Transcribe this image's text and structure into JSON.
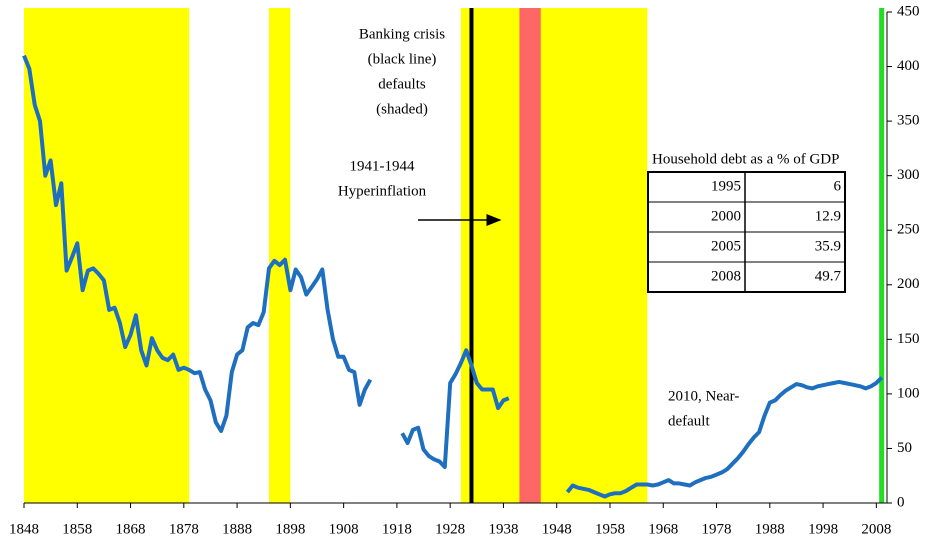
{
  "chart_data": {
    "type": "line",
    "banking_crisis_label": [
      "Banking crisis",
      "(black line)",
      "defaults",
      "(shaded)"
    ],
    "hyperinflation_label": [
      "1941-1944",
      "Hyperinflation"
    ],
    "near_default_label": [
      "2010, Near-",
      "default"
    ],
    "x": [
      1848,
      1849,
      1850,
      1851,
      1852,
      1853,
      1854,
      1855,
      1856,
      1857,
      1858,
      1859,
      1860,
      1861,
      1862,
      1863,
      1864,
      1865,
      1866,
      1867,
      1868,
      1869,
      1870,
      1871,
      1872,
      1873,
      1874,
      1875,
      1876,
      1877,
      1878,
      1879,
      1880,
      1881,
      1882,
      1883,
      1884,
      1885,
      1886,
      1887,
      1888,
      1889,
      1890,
      1891,
      1892,
      1893,
      1894,
      1895,
      1896,
      1897,
      1898,
      1899,
      1900,
      1901,
      1902,
      1903,
      1904,
      1905,
      1906,
      1907,
      1908,
      1909,
      1910,
      1911,
      1912,
      1913,
      1916,
      1919,
      1920,
      1921,
      1922,
      1923,
      1924,
      1925,
      1926,
      1927,
      1928,
      1929,
      1930,
      1931,
      1932,
      1933,
      1934,
      1935,
      1936,
      1937,
      1938,
      1939,
      1945,
      1950,
      1951,
      1952,
      1953,
      1954,
      1955,
      1956,
      1957,
      1958,
      1959,
      1960,
      1961,
      1962,
      1963,
      1964,
      1965,
      1966,
      1967,
      1968,
      1969,
      1970,
      1971,
      1972,
      1973,
      1974,
      1975,
      1976,
      1977,
      1978,
      1979,
      1980,
      1981,
      1982,
      1983,
      1984,
      1985,
      1986,
      1987,
      1988,
      1989,
      1990,
      1991,
      1992,
      1993,
      1994,
      1995,
      1996,
      1997,
      1998,
      1999,
      2000,
      2001,
      2002,
      2003,
      2004,
      2005,
      2006,
      2007,
      2008,
      2009
    ],
    "series": [
      {
        "color": "#1f6fc0",
        "values": [
          410,
          398,
          365,
          350,
          300,
          314,
          273,
          293,
          213,
          225,
          238,
          195,
          213,
          215,
          210,
          204,
          177,
          179,
          165,
          143,
          154,
          172,
          140,
          126,
          151,
          140,
          133,
          131,
          136,
          122,
          124,
          122,
          119,
          120,
          104,
          94,
          74,
          66,
          80,
          120,
          136,
          140,
          161,
          165,
          163,
          175,
          215,
          222,
          218,
          223,
          195,
          214,
          207,
          191,
          198,
          205,
          214,
          177,
          150,
          134,
          134,
          122,
          120,
          90,
          104,
          113,
          null,
          64,
          55,
          67,
          69,
          49,
          43,
          40,
          38,
          33,
          110,
          118,
          128,
          140,
          126,
          110,
          104,
          104,
          104,
          87,
          94,
          96,
          null,
          10,
          16,
          14,
          13,
          12,
          10,
          8,
          6,
          8,
          9,
          9,
          11,
          14,
          17,
          17,
          17,
          16,
          17,
          19,
          21,
          18,
          18,
          17,
          16,
          19,
          21,
          23,
          24,
          26,
          28,
          31,
          36,
          41,
          47,
          54,
          60,
          65,
          80,
          92,
          94,
          99,
          103,
          106,
          109,
          108,
          106,
          105,
          107,
          108,
          109,
          110,
          111,
          110,
          109,
          108,
          107,
          105,
          107,
          110,
          115
        ]
      }
    ],
    "default_periods": [
      [
        1848,
        1879
      ],
      [
        1894,
        1898
      ],
      [
        1930,
        1965
      ]
    ],
    "default_color": "#ffff00",
    "hyperinflation_period": [
      1941,
      1945
    ],
    "hyperinflation_color": "#ff6666",
    "banking_crisis_year": 1932,
    "end_marker_year": 2009,
    "end_marker_color": "#22dd22",
    "xlim": [
      1848,
      2010
    ],
    "xticks": [
      1848,
      1858,
      1868,
      1878,
      1888,
      1898,
      1908,
      1918,
      1928,
      1938,
      1948,
      1958,
      1968,
      1978,
      1988,
      1998,
      2008
    ],
    "ylim": [
      0,
      450
    ],
    "yticks": [
      0,
      50,
      100,
      150,
      200,
      250,
      300,
      350,
      400,
      450
    ]
  },
  "table": {
    "title": "Household debt as a % of GDP",
    "rows": [
      [
        "1995",
        "6"
      ],
      [
        "2000",
        "12.9"
      ],
      [
        "2005",
        "35.9"
      ],
      [
        "2008",
        "49.7"
      ]
    ]
  }
}
